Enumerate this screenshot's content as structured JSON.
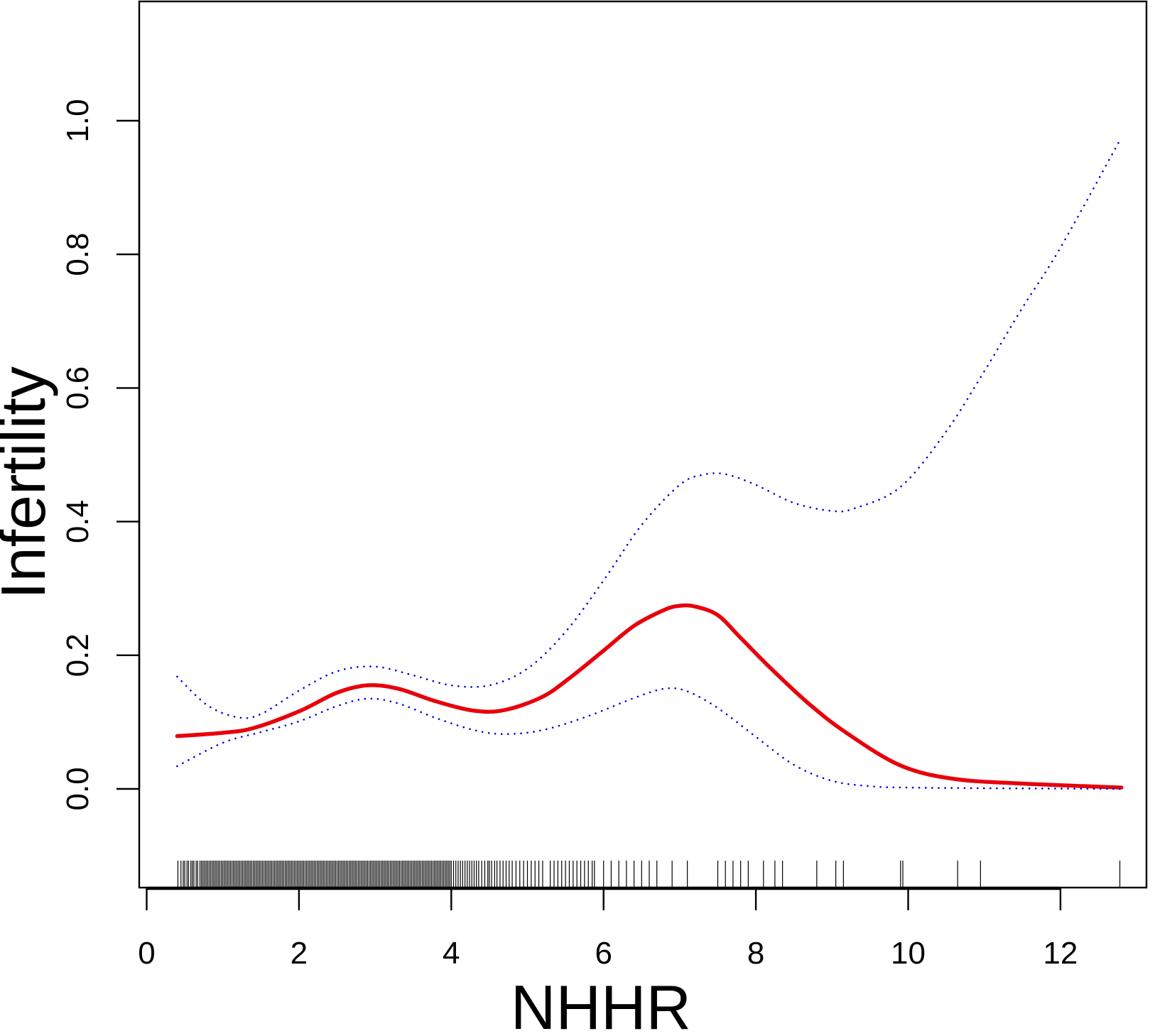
{
  "chart_data": {
    "type": "line",
    "xlabel": "NHHR",
    "ylabel": "Infertility",
    "xlim": [
      -0.3,
      13.3
    ],
    "ylim": [
      -0.145,
      1.18
    ],
    "xticks": [
      0,
      2,
      4,
      6,
      8,
      10,
      12
    ],
    "yticks": [
      0.0,
      0.2,
      0.4,
      0.6,
      0.8,
      1.0
    ],
    "xtick_labels": [
      "0",
      "2",
      "4",
      "6",
      "8",
      "10",
      "12"
    ],
    "ytick_labels": [
      "0.0",
      "0.2",
      "0.4",
      "0.6",
      "0.8",
      "1.0"
    ],
    "grid": false,
    "colors": {
      "fit": "#e8000b",
      "ci": "#0000dd",
      "rug": "#000000",
      "axis": "#000000"
    },
    "series": [
      {
        "role": "fit",
        "style": "solid",
        "x": [
          0.4,
          1.0,
          1.4,
          2.0,
          2.5,
          2.9,
          3.3,
          3.8,
          4.3,
          4.7,
          5.2,
          5.6,
          6.0,
          6.4,
          6.8,
          7.0,
          7.2,
          7.5,
          7.8,
          8.2,
          8.7,
          9.2,
          9.9,
          10.6,
          11.5,
          12.8
        ],
        "y": [
          0.079,
          0.084,
          0.091,
          0.116,
          0.144,
          0.155,
          0.15,
          0.131,
          0.117,
          0.118,
          0.138,
          0.17,
          0.207,
          0.244,
          0.268,
          0.274,
          0.273,
          0.26,
          0.226,
          0.18,
          0.127,
          0.083,
          0.035,
          0.015,
          0.008,
          0.002
        ]
      },
      {
        "role": "ci_upper",
        "style": "dotted",
        "x": [
          0.4,
          0.8,
          1.2,
          1.5,
          2.0,
          2.5,
          3.0,
          3.5,
          4.0,
          4.5,
          5.0,
          5.5,
          6.0,
          6.5,
          7.0,
          7.3,
          7.6,
          8.0,
          8.5,
          9.0,
          9.3,
          9.9,
          10.5,
          11.0,
          11.5,
          12.0,
          12.8
        ],
        "y": [
          0.168,
          0.125,
          0.107,
          0.112,
          0.147,
          0.176,
          0.183,
          0.17,
          0.155,
          0.155,
          0.18,
          0.235,
          0.312,
          0.395,
          0.455,
          0.47,
          0.471,
          0.455,
          0.428,
          0.416,
          0.42,
          0.452,
          0.535,
          0.625,
          0.72,
          0.81,
          0.975
        ]
      },
      {
        "role": "ci_lower",
        "style": "dotted",
        "x": [
          0.4,
          1.0,
          1.5,
          2.0,
          2.5,
          2.9,
          3.3,
          3.8,
          4.3,
          4.7,
          5.2,
          5.8,
          6.4,
          6.8,
          7.1,
          7.5,
          8.0,
          8.5,
          9.0,
          9.5,
          10.0,
          11.0,
          12.0,
          12.8
        ],
        "y": [
          0.034,
          0.069,
          0.085,
          0.101,
          0.124,
          0.135,
          0.128,
          0.106,
          0.088,
          0.082,
          0.088,
          0.109,
          0.136,
          0.15,
          0.146,
          0.121,
          0.078,
          0.036,
          0.012,
          0.004,
          0.002,
          0.001,
          0.0005,
          0.0
        ]
      }
    ],
    "rug_x": [
      0.41,
      0.45,
      0.48,
      0.5,
      0.53,
      0.55,
      0.58,
      0.6,
      0.62,
      0.65,
      0.67,
      0.7,
      0.72,
      0.74,
      0.76,
      0.78,
      0.8,
      0.82,
      0.84,
      0.86,
      0.88,
      0.9,
      0.92,
      0.94,
      0.96,
      0.98,
      1.0,
      1.02,
      1.04,
      1.06,
      1.08,
      1.1,
      1.12,
      1.14,
      1.16,
      1.18,
      1.2,
      1.22,
      1.24,
      1.26,
      1.28,
      1.3,
      1.32,
      1.34,
      1.36,
      1.38,
      1.4,
      1.42,
      1.44,
      1.46,
      1.48,
      1.5,
      1.52,
      1.54,
      1.56,
      1.58,
      1.6,
      1.62,
      1.64,
      1.66,
      1.68,
      1.7,
      1.72,
      1.74,
      1.76,
      1.78,
      1.8,
      1.82,
      1.84,
      1.86,
      1.88,
      1.9,
      1.92,
      1.94,
      1.96,
      1.98,
      2.0,
      2.02,
      2.04,
      2.06,
      2.08,
      2.1,
      2.12,
      2.14,
      2.16,
      2.18,
      2.2,
      2.22,
      2.24,
      2.26,
      2.28,
      2.3,
      2.32,
      2.34,
      2.36,
      2.38,
      2.4,
      2.42,
      2.44,
      2.46,
      2.48,
      2.5,
      2.52,
      2.54,
      2.56,
      2.58,
      2.6,
      2.62,
      2.64,
      2.66,
      2.68,
      2.7,
      2.72,
      2.74,
      2.76,
      2.78,
      2.8,
      2.82,
      2.84,
      2.86,
      2.88,
      2.9,
      2.92,
      2.94,
      2.96,
      2.98,
      3.0,
      3.02,
      3.04,
      3.06,
      3.08,
      3.1,
      3.12,
      3.14,
      3.16,
      3.18,
      3.2,
      3.22,
      3.24,
      3.26,
      3.28,
      3.3,
      3.32,
      3.34,
      3.36,
      3.38,
      3.4,
      3.42,
      3.44,
      3.46,
      3.48,
      3.5,
      3.52,
      3.54,
      3.56,
      3.58,
      3.6,
      3.62,
      3.64,
      3.66,
      3.68,
      3.7,
      3.72,
      3.74,
      3.76,
      3.78,
      3.8,
      3.82,
      3.84,
      3.86,
      3.88,
      3.9,
      3.92,
      3.94,
      3.96,
      3.98,
      4.0,
      4.03,
      4.06,
      4.09,
      4.12,
      4.15,
      4.18,
      4.21,
      4.24,
      4.27,
      4.3,
      4.33,
      4.36,
      4.4,
      4.44,
      4.48,
      4.5,
      4.53,
      4.57,
      4.6,
      4.64,
      4.68,
      4.72,
      4.76,
      4.8,
      4.85,
      4.9,
      4.95,
      5.0,
      5.05,
      5.1,
      5.15,
      5.2,
      5.3,
      5.35,
      5.4,
      5.45,
      5.5,
      5.55,
      5.6,
      5.65,
      5.7,
      5.75,
      5.8,
      5.85,
      5.88,
      6.0,
      6.1,
      6.2,
      6.3,
      6.4,
      6.5,
      6.6,
      6.7,
      6.9,
      7.1,
      7.5,
      7.6,
      7.7,
      7.8,
      7.9,
      8.1,
      8.25,
      8.35,
      8.8,
      9.05,
      9.15,
      9.9,
      9.93,
      10.65,
      10.95,
      12.78
    ],
    "_rug_note": ""
  }
}
